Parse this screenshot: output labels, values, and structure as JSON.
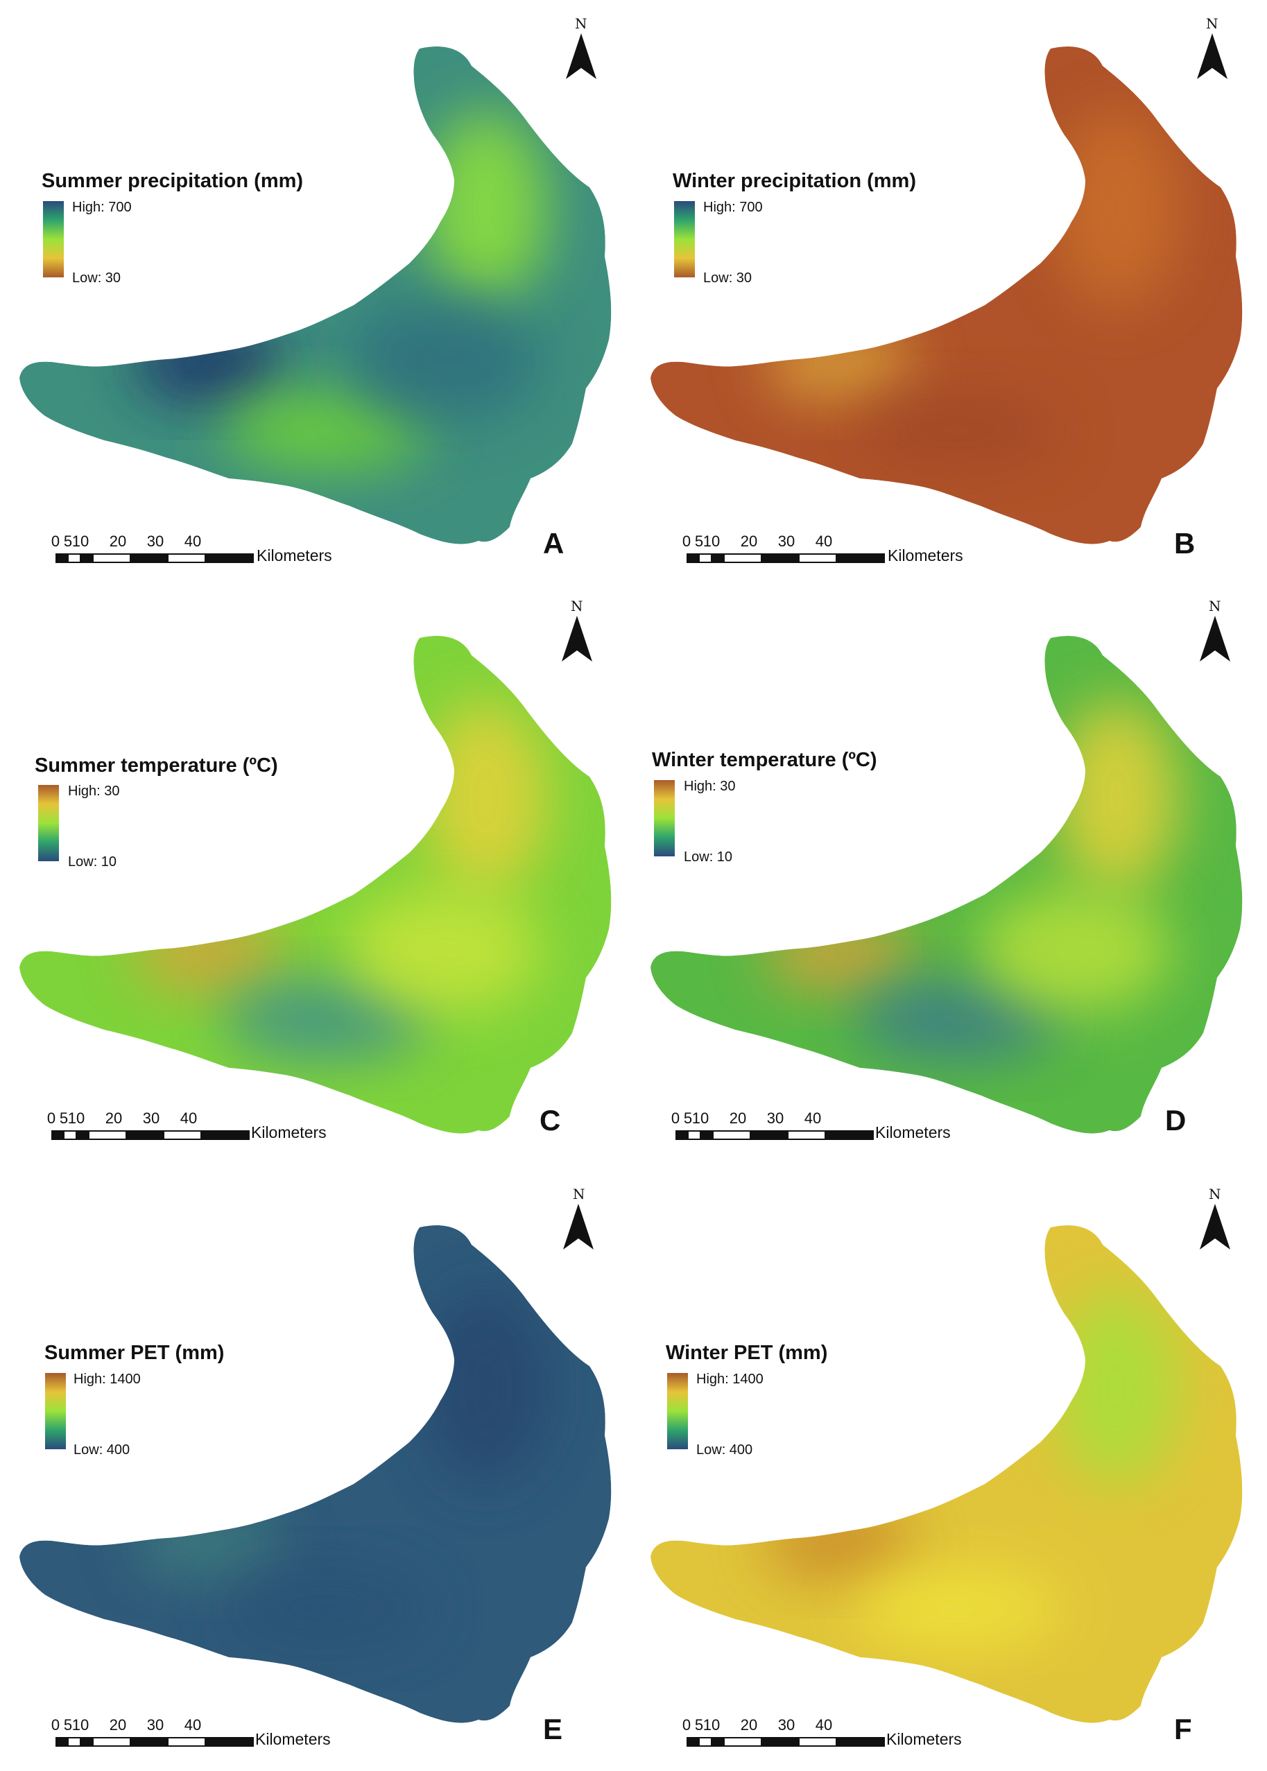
{
  "panels": [
    {
      "letter": "A",
      "legend": {
        "title": "Summer precipitation (mm)",
        "high": "High: 700",
        "low": "Low: 30"
      },
      "ramp": [
        "#2b4a7e",
        "#2fa46c",
        "#9be23a",
        "#e6c43a",
        "#a85a2a"
      ],
      "north": "N",
      "scale": {
        "ticks": [
          "0",
          "5",
          "10",
          "20",
          "30",
          "40"
        ],
        "unit": "Kilometers"
      }
    },
    {
      "letter": "B",
      "legend": {
        "title": "Winter precipitation (mm)",
        "high": "High: 700",
        "low": "Low: 30"
      },
      "ramp": [
        "#2b4a7e",
        "#2fa46c",
        "#9be23a",
        "#e6c43a",
        "#a85a2a"
      ],
      "north": "N",
      "scale": {
        "ticks": [
          "0",
          "5",
          "10",
          "20",
          "30",
          "40"
        ],
        "unit": "Kilometers"
      }
    },
    {
      "letter": "C",
      "legend": {
        "title": "Summer temperature (ºC)",
        "high": "High: 30",
        "low": "Low: 10"
      },
      "ramp": [
        "#a85a2a",
        "#e6c43a",
        "#9be23a",
        "#2fa46c",
        "#2b4a7e"
      ],
      "north": "N",
      "scale": {
        "ticks": [
          "0",
          "5",
          "10",
          "20",
          "30",
          "40"
        ],
        "unit": "Kilometers"
      }
    },
    {
      "letter": "D",
      "legend": {
        "title": "Winter temperature (ºC)",
        "high": "High: 30",
        "low": "Low: 10"
      },
      "ramp": [
        "#a85a2a",
        "#e6c43a",
        "#9be23a",
        "#2fa46c",
        "#2b4a7e"
      ],
      "north": "N",
      "scale": {
        "ticks": [
          "0",
          "5",
          "10",
          "20",
          "30",
          "40"
        ],
        "unit": "Kilometers"
      }
    },
    {
      "letter": "E",
      "legend": {
        "title": "Summer PET (mm)",
        "high": "High: 1400",
        "low": "Low: 400"
      },
      "ramp": [
        "#a85a2a",
        "#e6c43a",
        "#9be23a",
        "#2fa46c",
        "#2b4a7e"
      ],
      "north": "N",
      "scale": {
        "ticks": [
          "0",
          "5",
          "10",
          "20",
          "30",
          "40"
        ],
        "unit": "Kilometers"
      }
    },
    {
      "letter": "F",
      "legend": {
        "title": "Winter PET (mm)",
        "high": "High: 1400",
        "low": "Low: 400"
      },
      "ramp": [
        "#a85a2a",
        "#e6c43a",
        "#9be23a",
        "#2fa46c",
        "#2b4a7e"
      ],
      "north": "N",
      "scale": {
        "ticks": [
          "0",
          "5",
          "10",
          "20",
          "30",
          "40"
        ],
        "unit": "Kilometers"
      }
    }
  ],
  "colors": {
    "A": {
      "base": "#3f8f7e",
      "lobes": [
        "#1f2f6a",
        "#8fe23a",
        "#6fd238",
        "#2f6f7e"
      ]
    },
    "B": {
      "base": "#b0532a",
      "lobes": [
        "#d9a23a",
        "#c9702a",
        "#a24a28"
      ]
    },
    "C": {
      "base": "#7fd33a",
      "lobes": [
        "#d9a23a",
        "#e6d23a",
        "#3f8f8a",
        "#c8e43a"
      ]
    },
    "D": {
      "base": "#58b844",
      "lobes": [
        "#d9a23a",
        "#e6d23a",
        "#3b7a8a",
        "#b8e03a"
      ]
    },
    "E": {
      "base": "#2f5a7a",
      "lobes": [
        "#3f7e7e",
        "#25466e",
        "#2a5276"
      ]
    },
    "F": {
      "base": "#e0c53a",
      "lobes": [
        "#c98a2a",
        "#a6e03a",
        "#efe23a"
      ]
    },
    "text": "#111111"
  }
}
